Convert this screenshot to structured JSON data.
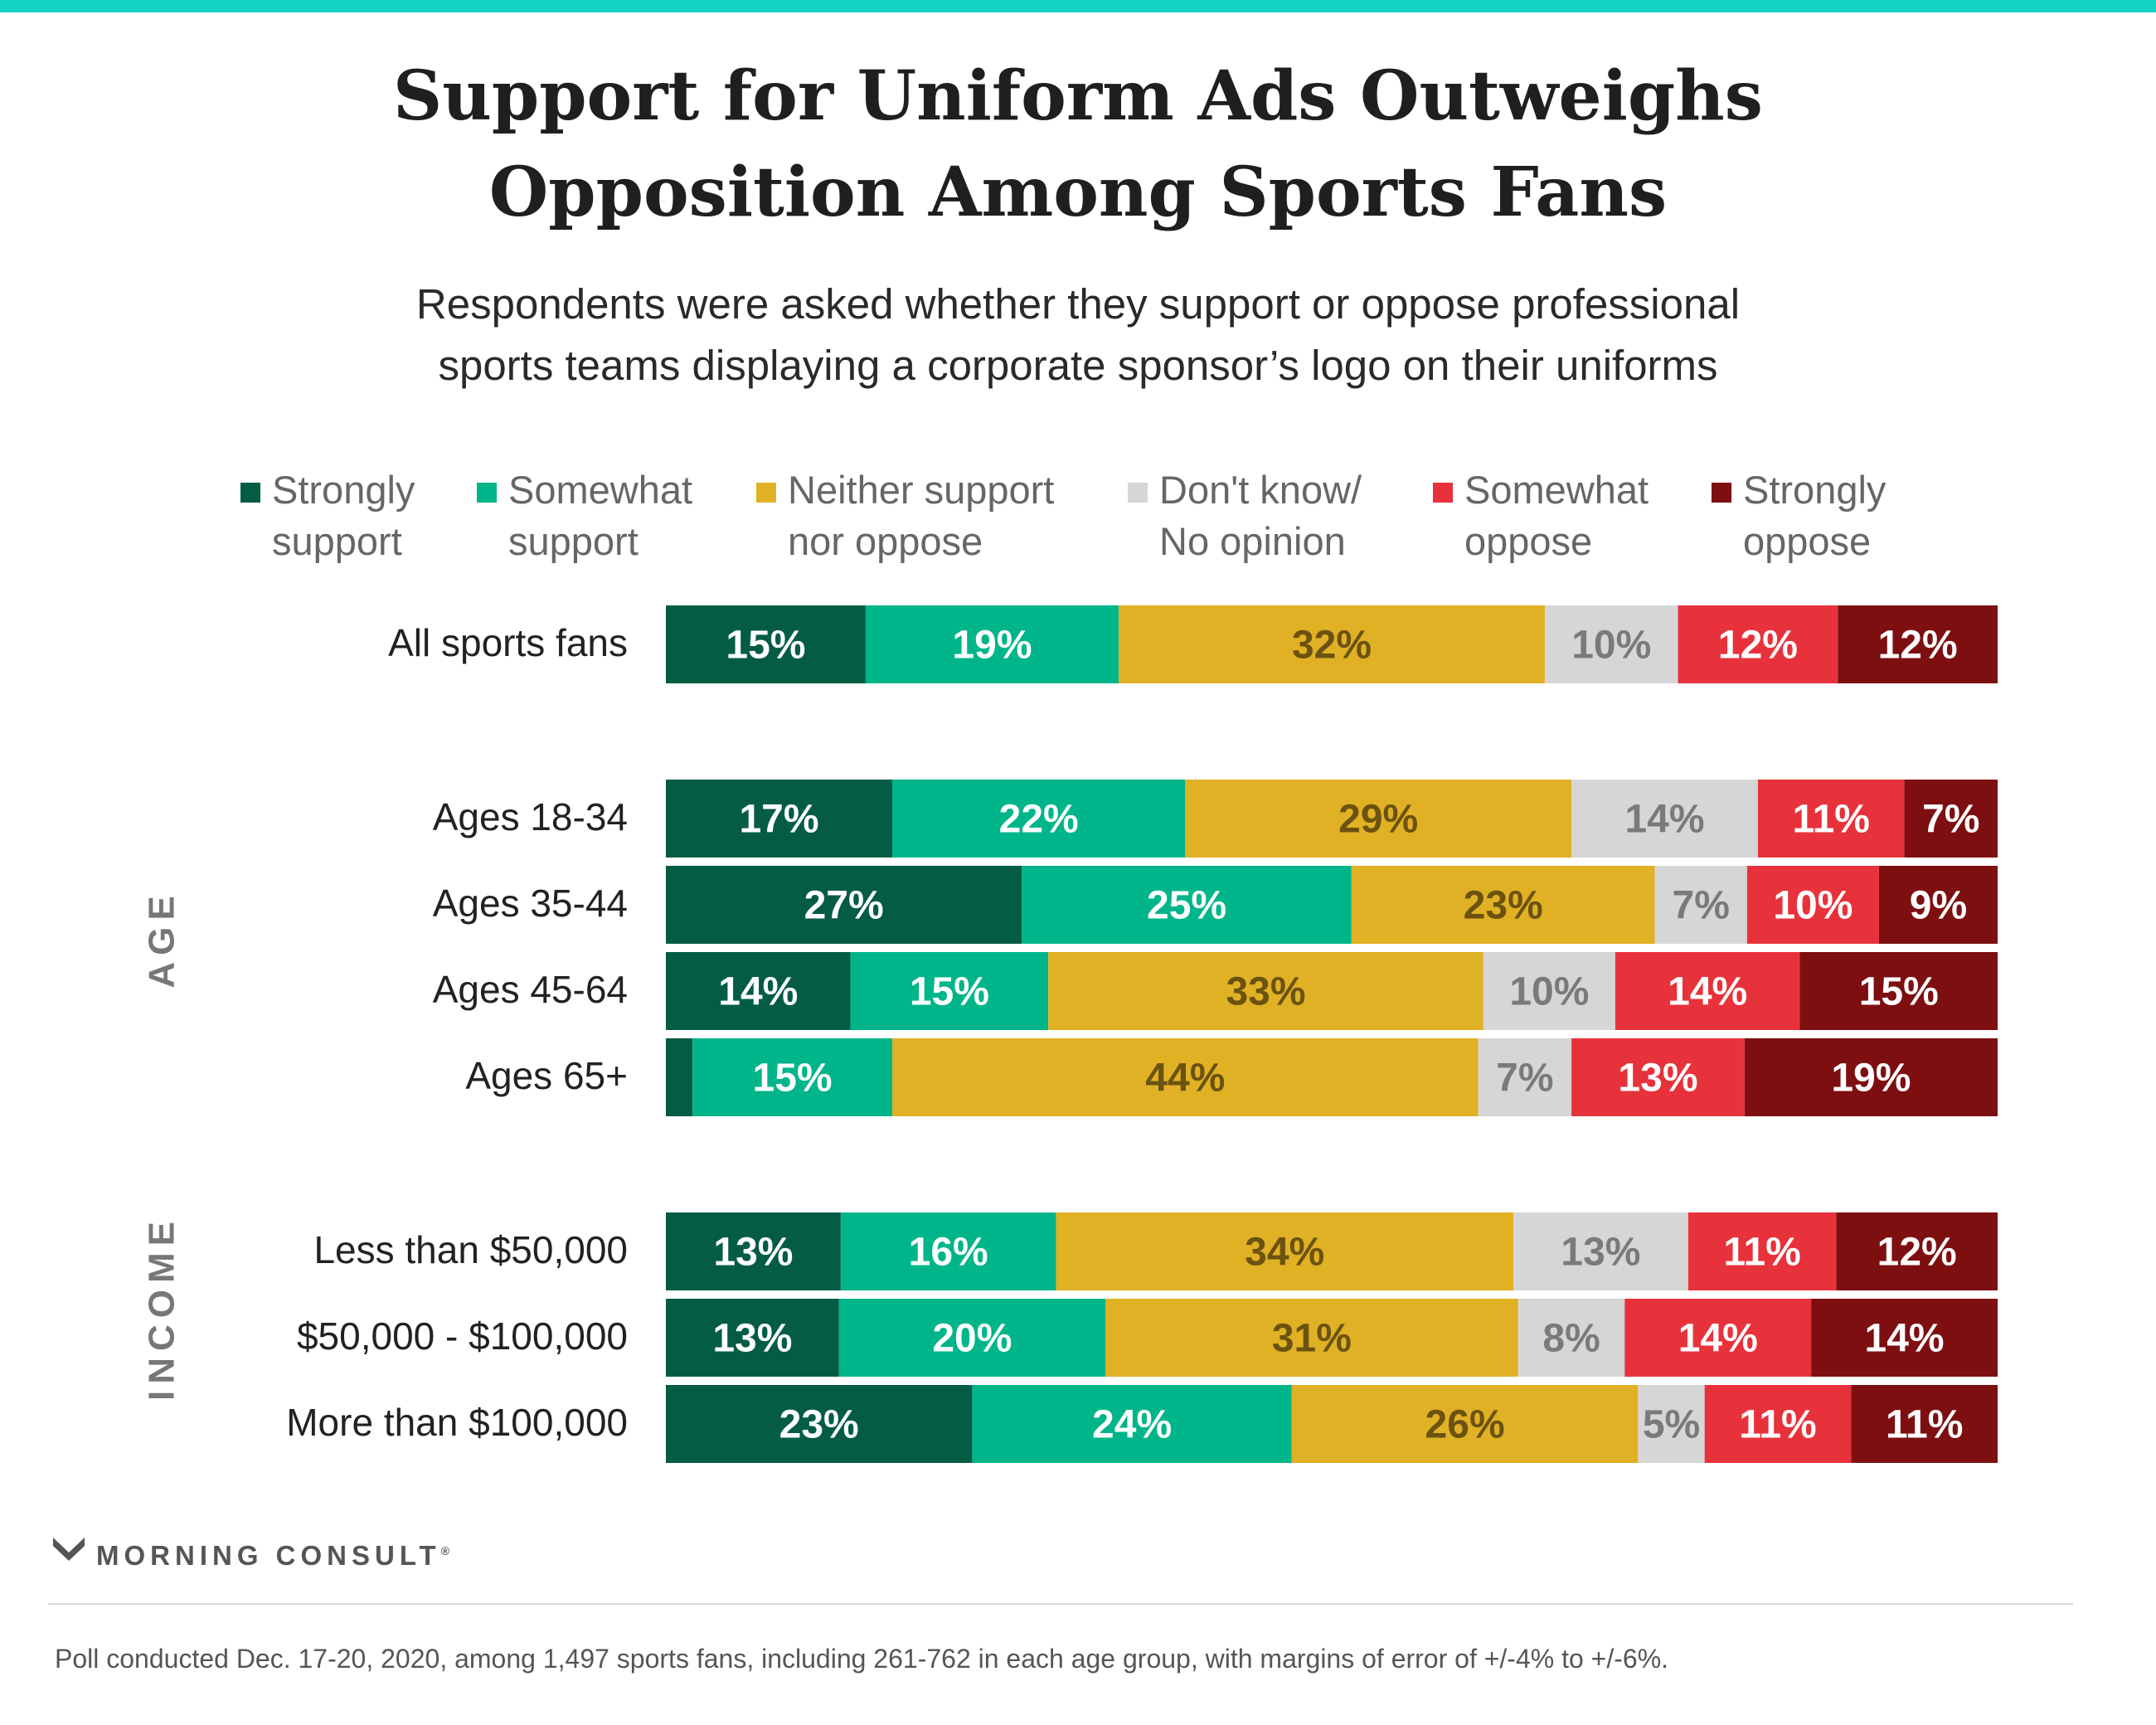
{
  "header": {
    "title_line1": "Support for Uniform Ads Outweighs",
    "title_line2": "Opposition Among Sports Fans",
    "subtitle_line1": "Respondents were asked whether they support or oppose professional",
    "subtitle_line2": "sports teams displaying a corporate sponsor’s logo on their uniforms"
  },
  "chart_data": {
    "type": "bar",
    "orientation": "horizontal",
    "stacked": true,
    "normalized": true,
    "grid": false,
    "legend_position": "top",
    "series": [
      {
        "name_line1": "Strongly",
        "name_line2": "support",
        "color": "#045c45",
        "label_color": "#ffffff"
      },
      {
        "name_line1": "Somewhat",
        "name_line2": "support",
        "color": "#00b58a",
        "label_color": "#ffffff"
      },
      {
        "name_line1": "Neither support",
        "name_line2": "nor oppose",
        "color": "#e0b125",
        "label_color": "#6b5210"
      },
      {
        "name_line1": "Don't know/",
        "name_line2": "No opinion",
        "color": "#d6d6d6",
        "label_color": "#7a7a7a"
      },
      {
        "name_line1": "Somewhat",
        "name_line2": "oppose",
        "color": "#e8323b",
        "label_color": "#ffffff"
      },
      {
        "name_line1": "Strongly",
        "name_line2": "oppose",
        "color": "#7d0f11",
        "label_color": "#ffffff"
      }
    ],
    "groups": [
      {
        "label": "",
        "rows": [
          {
            "category": "All sports fans",
            "values": [
              15,
              19,
              32,
              10,
              12,
              12
            ],
            "labels": [
              "15%",
              "19%",
              "32%",
              "10%",
              "12%",
              "12%"
            ]
          }
        ]
      },
      {
        "label": "AGE",
        "rows": [
          {
            "category": "Ages 18-34",
            "values": [
              17,
              22,
              29,
              14,
              11,
              7
            ],
            "labels": [
              "17%",
              "22%",
              "29%",
              "14%",
              "11%",
              "7%"
            ]
          },
          {
            "category": "Ages 35-44",
            "values": [
              27,
              25,
              23,
              7,
              10,
              9
            ],
            "labels": [
              "27%",
              "25%",
              "23%",
              "7%",
              "10%",
              "9%"
            ]
          },
          {
            "category": "Ages 45-64",
            "values": [
              14,
              15,
              33,
              10,
              14,
              15
            ],
            "labels": [
              "14%",
              "15%",
              "33%",
              "10%",
              "14%",
              "15%"
            ]
          },
          {
            "category": "Ages 65+",
            "values": [
              2,
              15,
              44,
              7,
              13,
              19
            ],
            "labels": [
              "",
              "15%",
              "44%",
              "7%",
              "13%",
              "19%"
            ]
          }
        ]
      },
      {
        "label": "INCOME",
        "rows": [
          {
            "category": "Less than $50,000",
            "values": [
              13,
              16,
              34,
              13,
              11,
              12
            ],
            "labels": [
              "13%",
              "16%",
              "34%",
              "13%",
              "11%",
              "12%"
            ]
          },
          {
            "category": "$50,000 - $100,000",
            "values": [
              13,
              20,
              31,
              8,
              14,
              14
            ],
            "labels": [
              "13%",
              "20%",
              "31%",
              "8%",
              "14%",
              "14%"
            ]
          },
          {
            "category": "More than $100,000",
            "values": [
              23,
              24,
              26,
              5,
              11,
              11
            ],
            "labels": [
              "23%",
              "24%",
              "26%",
              "5%",
              "11%",
              "11%"
            ]
          }
        ]
      }
    ]
  },
  "footer": {
    "logo_text": "MORNING CONSULT",
    "logo_mark": "®",
    "note": "Poll conducted Dec. 17-20, 2020, among 1,497 sports fans, including 261-762 in each age group, with margins of error of +/-4% to +/-6%."
  }
}
